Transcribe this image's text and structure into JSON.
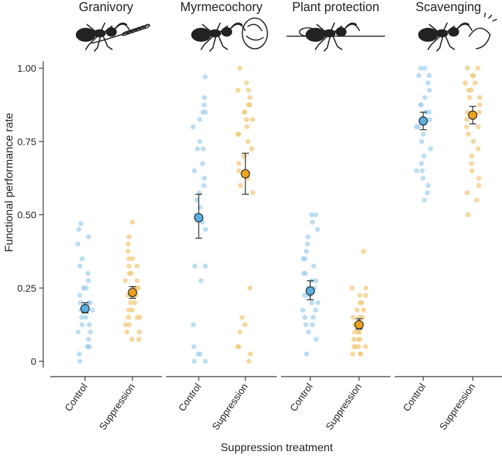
{
  "chart_data": {
    "type": "scatter",
    "ylabel": "Functional performance rate",
    "xlabel": "Suppression treatment",
    "ylim": [
      0,
      1
    ],
    "yticks": [
      {
        "value": 0,
        "label": "0"
      },
      {
        "value": 0.25,
        "label": "0.25"
      },
      {
        "value": 0.5,
        "label": "0.50"
      },
      {
        "value": 0.75,
        "label": "0.75"
      },
      {
        "value": 1.0,
        "label": "1.00"
      }
    ],
    "categories": [
      "Control",
      "Suppression"
    ],
    "colors": {
      "Control": {
        "point": "#9fd0ee",
        "mean": "#5aaee0"
      },
      "Suppression": {
        "point": "#f2c877",
        "mean": "#eba21e"
      }
    },
    "panels": [
      {
        "title": "Granivory",
        "illustration": "ant-carrying-seed-head",
        "groups": [
          {
            "category": "Control",
            "mean": 0.18,
            "lower": 0.165,
            "upper": 0.2,
            "points": [
              0.47,
              0.45,
              0.425,
              0.4,
              0.35,
              0.325,
              0.3,
              0.275,
              0.25,
              0.25,
              0.25,
              0.225,
              0.2,
              0.2,
              0.2,
              0.175,
              0.175,
              0.15,
              0.15,
              0.125,
              0.125,
              0.1,
              0.1,
              0.075,
              0.05,
              0.05,
              0.05,
              0.025,
              0.0
            ]
          },
          {
            "category": "Suppression",
            "mean": 0.235,
            "lower": 0.215,
            "upper": 0.255,
            "points": [
              0.475,
              0.425,
              0.4,
              0.375,
              0.35,
              0.35,
              0.325,
              0.325,
              0.3,
              0.3,
              0.275,
              0.275,
              0.25,
              0.25,
              0.25,
              0.225,
              0.225,
              0.2,
              0.2,
              0.175,
              0.175,
              0.15,
              0.15,
              0.15,
              0.125,
              0.125,
              0.1,
              0.1,
              0.075,
              0.075
            ]
          }
        ]
      },
      {
        "title": "Myrmecochory",
        "illustration": "ant-with-seed",
        "groups": [
          {
            "category": "Control",
            "mean": 0.49,
            "lower": 0.42,
            "upper": 0.57,
            "points": [
              0.97,
              0.9,
              0.875,
              0.85,
              0.85,
              0.825,
              0.8,
              0.75,
              0.725,
              0.725,
              0.675,
              0.65,
              0.625,
              0.6,
              0.575,
              0.55,
              0.525,
              0.5,
              0.475,
              0.45,
              0.325,
              0.325,
              0.275,
              0.125,
              0.05,
              0.025,
              0.025,
              0.0,
              0.0
            ]
          },
          {
            "category": "Suppression",
            "mean": 0.64,
            "lower": 0.57,
            "upper": 0.71,
            "points": [
              1.0,
              0.95,
              0.925,
              0.925,
              0.9,
              0.875,
              0.875,
              0.85,
              0.85,
              0.825,
              0.825,
              0.8,
              0.775,
              0.775,
              0.75,
              0.725,
              0.7,
              0.675,
              0.65,
              0.625,
              0.6,
              0.575,
              0.25,
              0.15,
              0.125,
              0.1,
              0.05,
              0.05,
              0.025,
              0.0
            ]
          }
        ]
      },
      {
        "title": "Plant protection",
        "illustration": "ant-on-plant-with-aphid",
        "groups": [
          {
            "category": "Control",
            "mean": 0.24,
            "lower": 0.21,
            "upper": 0.275,
            "points": [
              0.5,
              0.5,
              0.475,
              0.45,
              0.425,
              0.4,
              0.375,
              0.35,
              0.35,
              0.325,
              0.3,
              0.3,
              0.275,
              0.275,
              0.25,
              0.25,
              0.225,
              0.225,
              0.2,
              0.2,
              0.175,
              0.175,
              0.15,
              0.15,
              0.125,
              0.125,
              0.1,
              0.075,
              0.025
            ]
          },
          {
            "category": "Suppression",
            "mean": 0.125,
            "lower": 0.11,
            "upper": 0.145,
            "points": [
              0.375,
              0.25,
              0.25,
              0.225,
              0.225,
              0.2,
              0.2,
              0.175,
              0.175,
              0.15,
              0.15,
              0.15,
              0.125,
              0.125,
              0.125,
              0.1,
              0.1,
              0.1,
              0.075,
              0.075,
              0.075,
              0.05,
              0.05,
              0.05,
              0.05,
              0.025,
              0.025,
              0.025
            ]
          }
        ]
      },
      {
        "title": "Scavenging",
        "illustration": "ant-with-larva",
        "groups": [
          {
            "category": "Control",
            "mean": 0.82,
            "lower": 0.79,
            "upper": 0.85,
            "points": [
              1.0,
              1.0,
              0.975,
              0.975,
              0.95,
              0.925,
              0.9,
              0.875,
              0.875,
              0.85,
              0.85,
              0.825,
              0.8,
              0.8,
              0.775,
              0.75,
              0.725,
              0.7,
              0.675,
              0.65,
              0.65,
              0.625,
              0.6,
              0.575,
              0.55
            ]
          },
          {
            "category": "Suppression",
            "mean": 0.84,
            "lower": 0.81,
            "upper": 0.87,
            "points": [
              1.0,
              1.0,
              0.975,
              0.975,
              0.95,
              0.95,
              0.925,
              0.925,
              0.9,
              0.9,
              0.875,
              0.85,
              0.85,
              0.825,
              0.8,
              0.8,
              0.775,
              0.75,
              0.725,
              0.7,
              0.675,
              0.65,
              0.625,
              0.6,
              0.575,
              0.55,
              0.5
            ]
          }
        ]
      }
    ]
  }
}
